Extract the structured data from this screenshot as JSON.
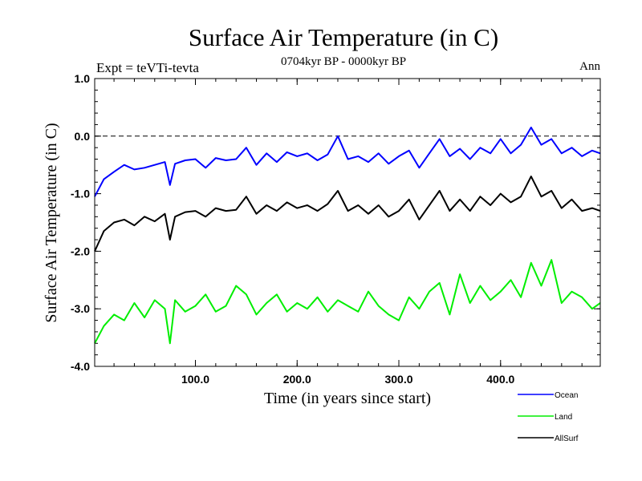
{
  "chart_data": {
    "type": "line",
    "title": "Surface Air Temperature (in C)",
    "subtitle": "0704kyr BP - 0000kyr BP",
    "experiment_label": "Expt = teVTi-tevta",
    "season_label": "Ann",
    "xlabel": "Time (in years since start)",
    "ylabel": "Surface Air Temperature (in C)",
    "xlim": [
      1,
      498
    ],
    "ylim": [
      -4.0,
      1.0
    ],
    "x_ticks": [
      100,
      200,
      300,
      400
    ],
    "x_tick_labels": [
      "100.0",
      "200.0",
      "300.0",
      "400.0"
    ],
    "y_ticks": [
      1.0,
      0.0,
      -1.0,
      -2.0,
      -3.0,
      -4.0
    ],
    "y_tick_labels": [
      "1.0",
      "0.0",
      "-1.0",
      "-2.0",
      "-3.0",
      "-4.0"
    ],
    "reference_line": 0.0,
    "grid": false,
    "legend_position": "bottom-right, below plot",
    "x": [
      1,
      10,
      20,
      30,
      40,
      50,
      60,
      70,
      75,
      80,
      90,
      100,
      110,
      120,
      130,
      140,
      150,
      160,
      170,
      180,
      190,
      200,
      210,
      220,
      230,
      240,
      250,
      260,
      270,
      280,
      290,
      300,
      310,
      320,
      330,
      340,
      350,
      360,
      370,
      380,
      390,
      400,
      410,
      420,
      430,
      440,
      450,
      460,
      470,
      480,
      490,
      498
    ],
    "series": [
      {
        "name": "Ocean",
        "color": "#0000ff",
        "values": [
          -1.05,
          -0.75,
          -0.62,
          -0.5,
          -0.58,
          -0.55,
          -0.5,
          -0.45,
          -0.85,
          -0.48,
          -0.42,
          -0.4,
          -0.55,
          -0.38,
          -0.42,
          -0.4,
          -0.2,
          -0.5,
          -0.3,
          -0.45,
          -0.28,
          -0.35,
          -0.3,
          -0.42,
          -0.32,
          0.0,
          -0.4,
          -0.35,
          -0.45,
          -0.3,
          -0.48,
          -0.35,
          -0.25,
          -0.55,
          -0.3,
          -0.05,
          -0.35,
          -0.22,
          -0.4,
          -0.2,
          -0.3,
          -0.05,
          -0.3,
          -0.15,
          0.15,
          -0.15,
          -0.05,
          -0.3,
          -0.2,
          -0.35,
          -0.25,
          -0.3
        ]
      },
      {
        "name": "Land",
        "color": "#00ee00",
        "values": [
          -3.6,
          -3.3,
          -3.1,
          -3.2,
          -2.9,
          -3.15,
          -2.85,
          -3.0,
          -3.6,
          -2.85,
          -3.05,
          -2.95,
          -2.75,
          -3.05,
          -2.95,
          -2.6,
          -2.75,
          -3.1,
          -2.9,
          -2.75,
          -3.05,
          -2.9,
          -3.0,
          -2.8,
          -3.05,
          -2.85,
          -2.95,
          -3.05,
          -2.7,
          -2.95,
          -3.1,
          -3.2,
          -2.8,
          -3.0,
          -2.7,
          -2.55,
          -3.1,
          -2.4,
          -2.9,
          -2.6,
          -2.85,
          -2.7,
          -2.5,
          -2.8,
          -2.2,
          -2.6,
          -2.15,
          -2.9,
          -2.7,
          -2.8,
          -3.0,
          -2.9
        ]
      },
      {
        "name": "AllSurf",
        "color": "#000000",
        "values": [
          -2.0,
          -1.65,
          -1.5,
          -1.45,
          -1.55,
          -1.4,
          -1.48,
          -1.35,
          -1.8,
          -1.4,
          -1.32,
          -1.3,
          -1.4,
          -1.25,
          -1.3,
          -1.28,
          -1.05,
          -1.35,
          -1.2,
          -1.3,
          -1.15,
          -1.25,
          -1.2,
          -1.3,
          -1.18,
          -0.95,
          -1.3,
          -1.2,
          -1.35,
          -1.2,
          -1.4,
          -1.3,
          -1.1,
          -1.45,
          -1.2,
          -0.95,
          -1.3,
          -1.1,
          -1.3,
          -1.05,
          -1.2,
          -1.0,
          -1.15,
          -1.05,
          -0.7,
          -1.05,
          -0.95,
          -1.25,
          -1.1,
          -1.3,
          -1.25,
          -1.3
        ]
      }
    ]
  }
}
